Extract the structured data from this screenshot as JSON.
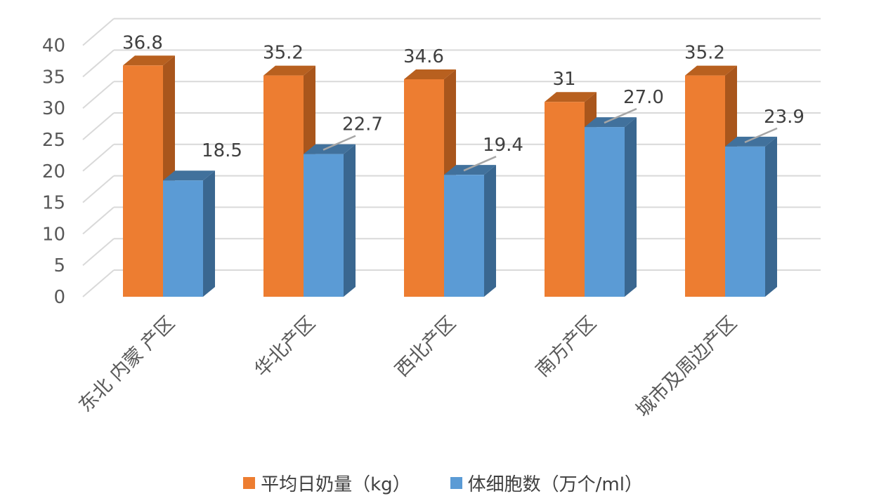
{
  "chart_data": {
    "type": "bar",
    "categories": [
      "东北 内蒙 产区",
      "华北产区",
      "西北产区",
      "南方产区",
      "城市及周边产区"
    ],
    "series": [
      {
        "name": "平均日奶量（kg）",
        "values": [
          36.8,
          35.2,
          34.6,
          31,
          35.2
        ],
        "labels": [
          "36.8",
          "35.2",
          "34.6",
          "31",
          "35.2"
        ],
        "color": "#ED7D31",
        "side_color": "#A9561C",
        "top_color": "#B8601F"
      },
      {
        "name": "体细胞数（万个/ml）",
        "values": [
          18.5,
          22.7,
          19.4,
          27.0,
          23.9
        ],
        "labels": [
          "18.5",
          "22.7",
          "19.4",
          "27.0",
          "23.9"
        ],
        "color": "#5B9BD5",
        "side_color": "#3A6790",
        "top_color": "#41719C"
      }
    ],
    "yticks": [
      "0",
      "5",
      "10",
      "15",
      "20",
      "25",
      "30",
      "35",
      "40"
    ],
    "ylim": [
      0,
      40
    ],
    "grid": true,
    "legend_position": "bottom",
    "style": "3d-clustered-column"
  }
}
